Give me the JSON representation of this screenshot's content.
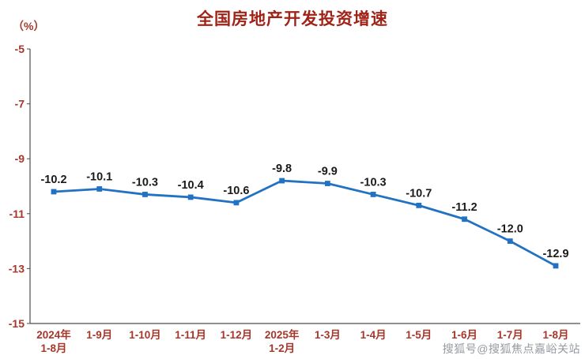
{
  "page": {
    "title": "全国房地产开发投资增速",
    "unit_label": "（%）",
    "watermark": "搜狐号@搜狐焦点嘉峪关站"
  },
  "colors": {
    "title": "#a02318",
    "axis_labels": "#a5372b",
    "axis_lines": "#4d4d4d",
    "line": "#2272c3",
    "data_labels": "#1a1a1a",
    "watermark": "#8a9097"
  },
  "chart_data": {
    "type": "line",
    "title": "全国房地产开发投资增速",
    "unit": "（%）",
    "categories": [
      "2024年\n1-8月",
      "1-9月",
      "1-10月",
      "1-11月",
      "1-12月",
      "2025年\n1-2月",
      "1-3月",
      "1-4月",
      "1-5月",
      "1-6月",
      "1-7月",
      "1-8月"
    ],
    "values": [
      -10.2,
      -10.1,
      -10.3,
      -10.4,
      -10.6,
      -9.8,
      -9.9,
      -10.3,
      -10.7,
      -11.2,
      -12.0,
      -12.9
    ],
    "value_labels": [
      "-10.2",
      "-10.1",
      "-10.3",
      "-10.4",
      "-10.6",
      "-9.8",
      "-9.9",
      "-10.3",
      "-10.7",
      "-11.2",
      "-12.0",
      "-12.9"
    ],
    "ylim": [
      -15,
      -5
    ],
    "yticks": [
      -5,
      -7,
      -9,
      -11,
      -13,
      -15
    ],
    "grid": false,
    "legend": "none",
    "marker": "square",
    "xlabel": "",
    "ylabel": "（%）"
  }
}
